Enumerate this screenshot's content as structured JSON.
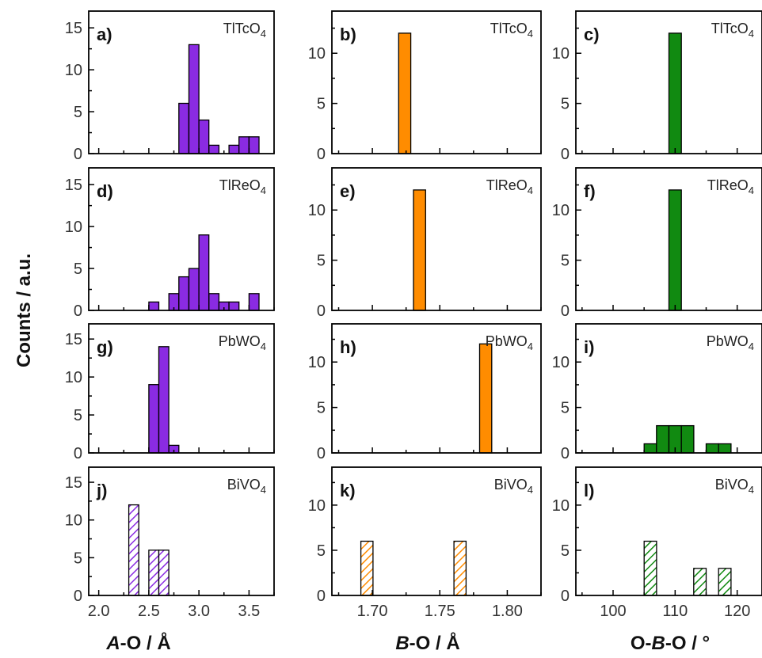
{
  "figure": {
    "ylabel": "Counts / a.u.",
    "column_xlabels": [
      {
        "pre": "",
        "em": "A",
        "post": "-O / Å"
      },
      {
        "pre": "",
        "em": "B",
        "post": "-O / Å"
      },
      {
        "pre": "O-",
        "em": "B",
        "post": "-O / °"
      }
    ]
  },
  "colors": {
    "purple": "#8a2be2",
    "orange": "#ff8c00",
    "green": "#118a11",
    "axis": "#000000"
  },
  "chart_data": [
    {
      "type": "bar",
      "panel": "a)",
      "compound": {
        "base": "TlTcO",
        "sub": "4"
      },
      "color": "#8a2be2",
      "hatched": false,
      "x": [
        2.85,
        2.95,
        3.05,
        3.15,
        3.35,
        3.45,
        3.55
      ],
      "values": [
        6,
        13,
        4,
        1,
        1,
        2,
        2
      ],
      "bar_width": 0.1,
      "xlim": [
        1.9,
        3.75
      ],
      "ylim": [
        0,
        17
      ],
      "yticks": [
        0,
        5,
        10,
        15
      ],
      "xticks": []
    },
    {
      "type": "bar",
      "panel": "b)",
      "compound": {
        "base": "TlTcO",
        "sub": "4"
      },
      "color": "#ff8c00",
      "hatched": false,
      "x": [
        1.724
      ],
      "values": [
        12
      ],
      "bar_width": 0.009,
      "xlim": [
        1.67,
        1.825
      ],
      "ylim": [
        0,
        14.2
      ],
      "yticks": [
        0,
        5,
        10
      ],
      "xticks": []
    },
    {
      "type": "bar",
      "panel": "c)",
      "compound": {
        "base": "TlTcO",
        "sub": "4"
      },
      "color": "#118a11",
      "hatched": false,
      "x": [
        110
      ],
      "values": [
        12
      ],
      "bar_width": 2,
      "xlim": [
        94,
        124
      ],
      "ylim": [
        0,
        14.2
      ],
      "yticks": [
        0,
        5,
        10
      ],
      "xticks": []
    },
    {
      "type": "bar",
      "panel": "d)",
      "compound": {
        "base": "TlReO",
        "sub": "4"
      },
      "color": "#8a2be2",
      "hatched": false,
      "x": [
        2.55,
        2.75,
        2.85,
        2.95,
        3.05,
        3.15,
        3.25,
        3.35,
        3.55
      ],
      "values": [
        1,
        2,
        4,
        5,
        9,
        2,
        1,
        1,
        2
      ],
      "bar_width": 0.1,
      "xlim": [
        1.9,
        3.75
      ],
      "ylim": [
        0,
        17
      ],
      "yticks": [
        0,
        5,
        10,
        15
      ],
      "xticks": []
    },
    {
      "type": "bar",
      "panel": "e)",
      "compound": {
        "base": "TlReO",
        "sub": "4"
      },
      "color": "#ff8c00",
      "hatched": false,
      "x": [
        1.735
      ],
      "values": [
        12
      ],
      "bar_width": 0.009,
      "xlim": [
        1.67,
        1.825
      ],
      "ylim": [
        0,
        14.2
      ],
      "yticks": [
        0,
        5,
        10
      ],
      "xticks": []
    },
    {
      "type": "bar",
      "panel": "f)",
      "compound": {
        "base": "TlReO",
        "sub": "4"
      },
      "color": "#118a11",
      "hatched": false,
      "x": [
        110
      ],
      "values": [
        12
      ],
      "bar_width": 2,
      "xlim": [
        94,
        124
      ],
      "ylim": [
        0,
        14.2
      ],
      "yticks": [
        0,
        5,
        10
      ],
      "xticks": []
    },
    {
      "type": "bar",
      "panel": "g)",
      "compound": {
        "base": "PbWO",
        "sub": "4"
      },
      "color": "#8a2be2",
      "hatched": false,
      "x": [
        2.55,
        2.65,
        2.75
      ],
      "values": [
        9,
        14,
        1
      ],
      "bar_width": 0.1,
      "xlim": [
        1.9,
        3.75
      ],
      "ylim": [
        0,
        17
      ],
      "yticks": [
        0,
        5,
        10,
        15
      ],
      "xticks": []
    },
    {
      "type": "bar",
      "panel": "h)",
      "compound": {
        "base": "PbWO",
        "sub": "4"
      },
      "color": "#ff8c00",
      "hatched": false,
      "x": [
        1.784
      ],
      "values": [
        12
      ],
      "bar_width": 0.009,
      "xlim": [
        1.67,
        1.825
      ],
      "ylim": [
        0,
        14.2
      ],
      "yticks": [
        0,
        5,
        10
      ],
      "xticks": []
    },
    {
      "type": "bar",
      "panel": "i)",
      "compound": {
        "base": "PbWO",
        "sub": "4"
      },
      "color": "#118a11",
      "hatched": false,
      "x": [
        106,
        108,
        110,
        112,
        116,
        118
      ],
      "values": [
        1,
        3,
        3,
        3,
        1,
        1
      ],
      "bar_width": 2,
      "xlim": [
        94,
        124
      ],
      "ylim": [
        0,
        14.2
      ],
      "yticks": [
        0,
        5,
        10
      ],
      "xticks": []
    },
    {
      "type": "bar",
      "panel": "j)",
      "compound": {
        "base": "BiVO",
        "sub": "4"
      },
      "color": "#8a2be2",
      "hatched": true,
      "x": [
        2.35,
        2.55,
        2.65
      ],
      "values": [
        12,
        6,
        6
      ],
      "bar_width": 0.1,
      "xlim": [
        1.9,
        3.75
      ],
      "ylim": [
        0,
        17
      ],
      "yticks": [
        0,
        5,
        10,
        15
      ],
      "xticks": [
        2.0,
        2.5,
        3.0,
        3.5
      ],
      "xtick_labels": [
        "2.0",
        "2.5",
        "3.0",
        "3.5"
      ]
    },
    {
      "type": "bar",
      "panel": "k)",
      "compound": {
        "base": "BiVO",
        "sub": "4"
      },
      "color": "#ff8c00",
      "hatched": true,
      "x": [
        1.696,
        1.765
      ],
      "values": [
        6,
        6
      ],
      "bar_width": 0.009,
      "xlim": [
        1.67,
        1.825
      ],
      "ylim": [
        0,
        14.2
      ],
      "yticks": [
        0,
        5,
        10
      ],
      "xticks": [
        1.7,
        1.75,
        1.8
      ],
      "xtick_labels": [
        "1.70",
        "1.75",
        "1.80"
      ]
    },
    {
      "type": "bar",
      "panel": "l)",
      "compound": {
        "base": "BiVO",
        "sub": "4"
      },
      "color": "#118a11",
      "hatched": true,
      "x": [
        106,
        114,
        118
      ],
      "values": [
        6,
        3,
        3
      ],
      "bar_width": 2,
      "xlim": [
        94,
        124
      ],
      "ylim": [
        0,
        14.2
      ],
      "yticks": [
        0,
        5,
        10
      ],
      "xticks": [
        100,
        110,
        120
      ],
      "xtick_labels": [
        "100",
        "110",
        "120"
      ]
    }
  ]
}
